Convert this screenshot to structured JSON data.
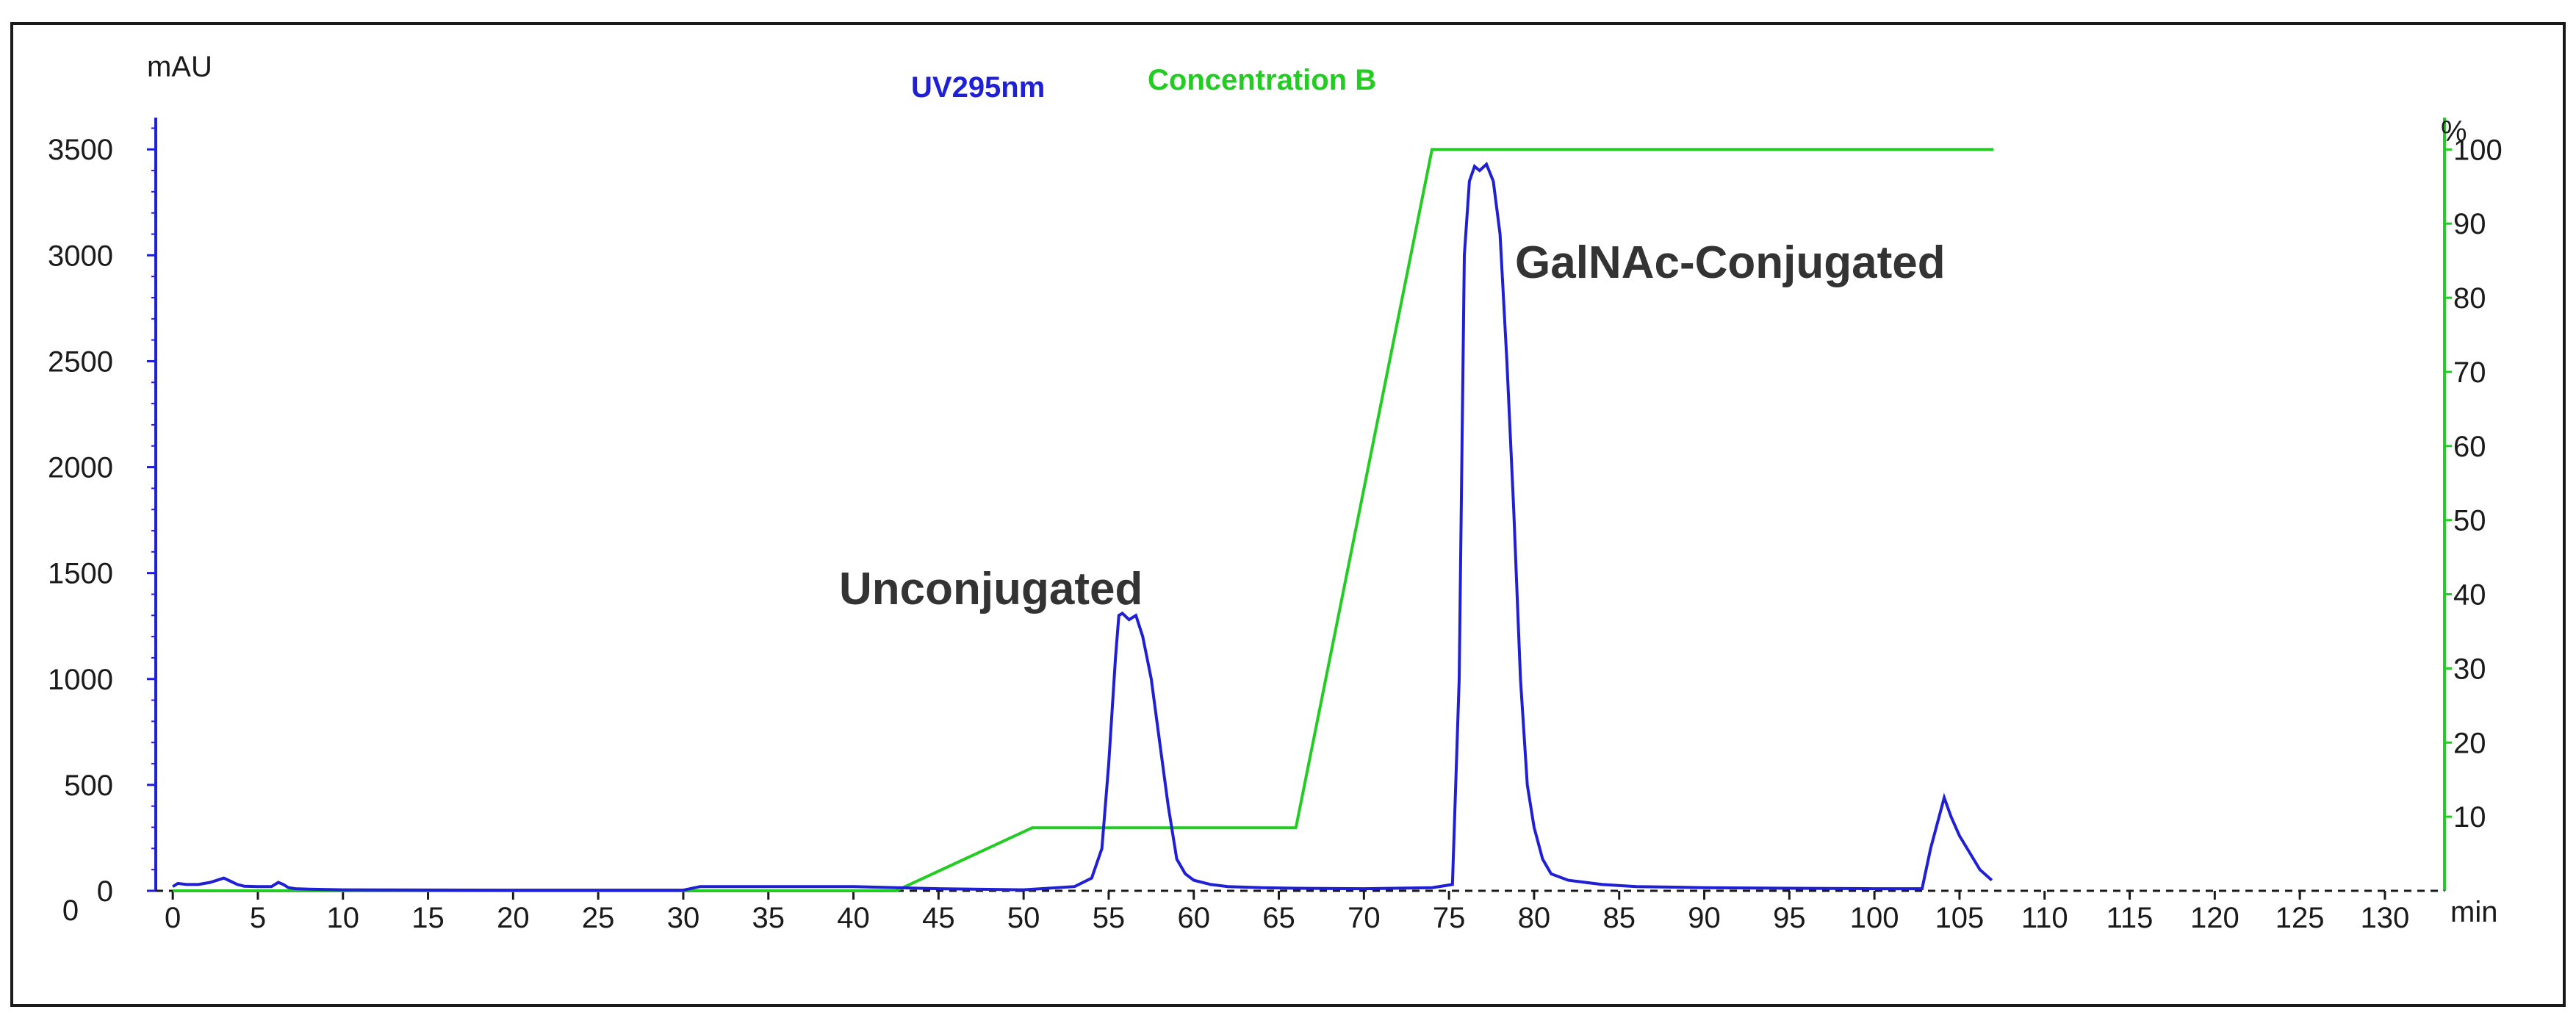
{
  "chart_data": {
    "type": "line",
    "title": "",
    "xlabel": "min",
    "ylabel": "mAU",
    "y2label": "%",
    "xlim": [
      -1,
      133.5
    ],
    "ylim": [
      0,
      3650
    ],
    "y2lim": [
      0,
      104.3
    ],
    "x_ticks": [
      0,
      5,
      10,
      15,
      20,
      25,
      30,
      35,
      40,
      45,
      50,
      55,
      60,
      65,
      70,
      75,
      80,
      85,
      90,
      95,
      100,
      105,
      110,
      115,
      120,
      125,
      130
    ],
    "y_ticks": [
      0,
      500,
      1000,
      1500,
      2000,
      2500,
      3000,
      3500
    ],
    "y2_ticks": [
      10,
      20,
      30,
      40,
      50,
      60,
      70,
      80,
      90,
      100
    ],
    "grid": false,
    "colors": {
      "uv": "#1f1fd6",
      "conc": "#22cc22",
      "frame": "#1a1a1a",
      "annot": "#333333"
    },
    "series": [
      {
        "name": "UV295nm",
        "axis": "left",
        "x": [
          0,
          0.3,
          0.8,
          1.5,
          2.2,
          3.0,
          3.4,
          3.8,
          4.2,
          5.0,
          5.8,
          6.2,
          6.5,
          6.8,
          7.2,
          8.0,
          10,
          20,
          30,
          31,
          33,
          40,
          45,
          50,
          53,
          54,
          54.6,
          55.0,
          55.4,
          55.6,
          55.8,
          56.2,
          56.6,
          57.0,
          57.5,
          58.0,
          58.5,
          59.0,
          59.5,
          60.0,
          61.0,
          62.0,
          64.0,
          66.0,
          70.0,
          74.0,
          75.2,
          75.6,
          75.9,
          76.2,
          76.5,
          76.8,
          77.2,
          77.6,
          78.0,
          78.4,
          78.8,
          79.2,
          79.6,
          80.0,
          80.5,
          81.0,
          82.0,
          84.0,
          86.0,
          90.0,
          95.0,
          100.0,
          102.8,
          103.3,
          103.8,
          104.1,
          104.5,
          105.0,
          105.6,
          106.2,
          106.9
        ],
        "values": [
          20,
          35,
          30,
          30,
          40,
          60,
          45,
          30,
          22,
          20,
          20,
          40,
          30,
          15,
          10,
          8,
          5,
          3,
          3,
          20,
          20,
          20,
          10,
          5,
          20,
          60,
          200,
          600,
          1100,
          1300,
          1310,
          1280,
          1300,
          1200,
          1000,
          700,
          400,
          150,
          80,
          50,
          30,
          20,
          15,
          12,
          10,
          15,
          30,
          1000,
          3000,
          3350,
          3420,
          3400,
          3430,
          3350,
          3100,
          2500,
          1800,
          1000,
          500,
          300,
          150,
          80,
          50,
          30,
          20,
          15,
          12,
          10,
          10,
          200,
          350,
          440,
          350,
          260,
          180,
          100,
          50
        ]
      },
      {
        "name": "Concentration B",
        "axis": "right",
        "x": [
          0,
          42.5,
          50.5,
          66.0,
          74.0,
          107.0
        ],
        "values": [
          0,
          0,
          8.5,
          8.5,
          100,
          100
        ]
      }
    ],
    "annotations": [
      "Unconjugated",
      "GalNAc-Conjugated"
    ]
  }
}
